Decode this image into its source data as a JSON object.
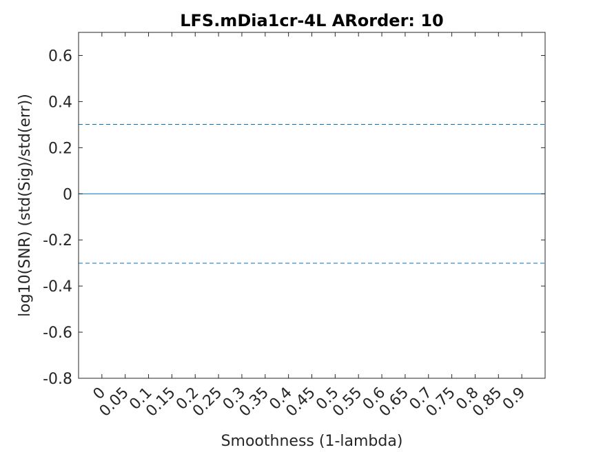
{
  "chart_data": {
    "type": "line",
    "title": "LFS.mDia1cr-4L ARorder: 10",
    "xlabel": "Smoothness (1-lambda)",
    "ylabel": "log10(SNR) (std(Sig)/std(err))",
    "x_ticks": [
      "0",
      "0.05",
      "0.1",
      "0.15",
      "0.2",
      "0.25",
      "0.3",
      "0.35",
      "0.4",
      "0.45",
      "0.5",
      "0.55",
      "0.6",
      "0.65",
      "0.7",
      "0.75",
      "0.8",
      "0.85",
      "0.9"
    ],
    "y_ticks": [
      "0.6",
      "0.4",
      "0.2",
      "0",
      "-0.2",
      "-0.4",
      "-0.6",
      "-0.8"
    ],
    "xlim": [
      -0.05,
      0.95
    ],
    "ylim": [
      -0.8,
      0.7
    ],
    "grid": false,
    "series": [
      {
        "style": "solid",
        "color": "#0072BD",
        "x": [
          -0.05,
          0.95
        ],
        "y": [
          0,
          0
        ]
      },
      {
        "style": "dashed",
        "color": "#0072BD",
        "x": [
          -0.05,
          0.95
        ],
        "y": [
          0.30103,
          0.30103
        ]
      },
      {
        "style": "dashed",
        "color": "#0072BD",
        "x": [
          -0.05,
          0.95
        ],
        "y": [
          -0.30103,
          -0.30103
        ]
      }
    ]
  }
}
